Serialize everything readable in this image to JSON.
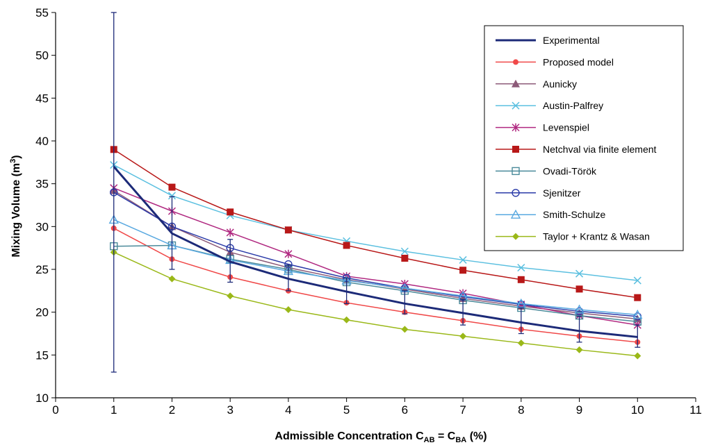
{
  "chart_data": {
    "type": "line",
    "title": "",
    "xlabel": {
      "main": "Admissible Concentration C",
      "sub1": "AB",
      "mid": " = C",
      "sub2": "BA",
      "end": " (%)"
    },
    "ylabel": {
      "main": "Mixing Volume (m",
      "sup": "3",
      "end": ")"
    },
    "xlim": [
      0,
      11
    ],
    "ylim": [
      10,
      55
    ],
    "xticks": [
      0,
      1,
      2,
      3,
      4,
      5,
      6,
      7,
      8,
      9,
      10,
      11
    ],
    "yticks": [
      10,
      15,
      20,
      25,
      30,
      35,
      40,
      45,
      50,
      55
    ],
    "grid": false,
    "legend_position": "top-right",
    "x": [
      1,
      2,
      3,
      4,
      5,
      6,
      7,
      8,
      9,
      10
    ],
    "series": [
      {
        "name": "Experimental",
        "color": "#1c2a78",
        "marker": "none",
        "width": 3,
        "values": [
          37.0,
          29.2,
          25.9,
          23.9,
          22.4,
          21.0,
          19.9,
          18.8,
          17.8,
          17.1
        ],
        "error_upper": [
          55.0,
          33.5,
          28.5,
          25.5,
          24.0,
          22.5,
          21.5,
          20.5,
          19.5,
          18.5
        ],
        "error_lower": [
          13.0,
          25.0,
          23.5,
          22.5,
          21.0,
          19.8,
          18.5,
          17.5,
          16.5,
          15.9
        ]
      },
      {
        "name": "Proposed model",
        "color": "#f04848",
        "marker": "circle-filled",
        "values": [
          29.8,
          26.2,
          24.1,
          22.5,
          21.1,
          20.0,
          19.0,
          18.0,
          17.2,
          16.5
        ]
      },
      {
        "name": "Aunicky",
        "color": "#8c5a78",
        "marker": "triangle-filled",
        "values": [
          34.2,
          30.0,
          27.0,
          25.2,
          23.8,
          22.7,
          21.6,
          20.7,
          19.9,
          19.2
        ]
      },
      {
        "name": "Austin-Palfrey",
        "color": "#5cc0e0",
        "marker": "x",
        "values": [
          37.2,
          33.6,
          31.3,
          29.6,
          28.3,
          27.1,
          26.1,
          25.2,
          24.5,
          23.7
        ]
      },
      {
        "name": "Levenspiel",
        "color": "#b02880",
        "marker": "asterisk",
        "values": [
          34.5,
          31.8,
          29.3,
          26.8,
          24.2,
          23.3,
          22.2,
          20.9,
          19.6,
          18.5
        ]
      },
      {
        "name": "Netchval via finite element",
        "color": "#b81818",
        "marker": "square-filled",
        "values": [
          39.0,
          34.6,
          31.7,
          29.6,
          27.8,
          26.3,
          24.9,
          23.8,
          22.7,
          21.7
        ]
      },
      {
        "name": "Ovadi-Török",
        "color": "#4a8a9a",
        "marker": "square-open",
        "values": [
          27.7,
          27.8,
          26.2,
          25.0,
          23.5,
          22.5,
          21.4,
          20.5,
          19.6,
          18.9
        ]
      },
      {
        "name": "Sjenitzer",
        "color": "#2a3aa8",
        "marker": "circle-open",
        "values": [
          34.0,
          30.0,
          27.5,
          25.6,
          24.0,
          22.8,
          21.8,
          20.9,
          20.1,
          19.5
        ]
      },
      {
        "name": "Smith-Schulze",
        "color": "#58a8e0",
        "marker": "triangle-open",
        "values": [
          30.8,
          27.8,
          26.1,
          24.8,
          23.7,
          22.8,
          21.9,
          21.0,
          20.3,
          19.7
        ]
      },
      {
        "name": "Taylor + Krantz & Wasan",
        "color": "#9ab818",
        "marker": "diamond-filled",
        "values": [
          27.0,
          23.9,
          21.9,
          20.3,
          19.1,
          18.0,
          17.2,
          16.4,
          15.6,
          14.9
        ]
      }
    ]
  }
}
